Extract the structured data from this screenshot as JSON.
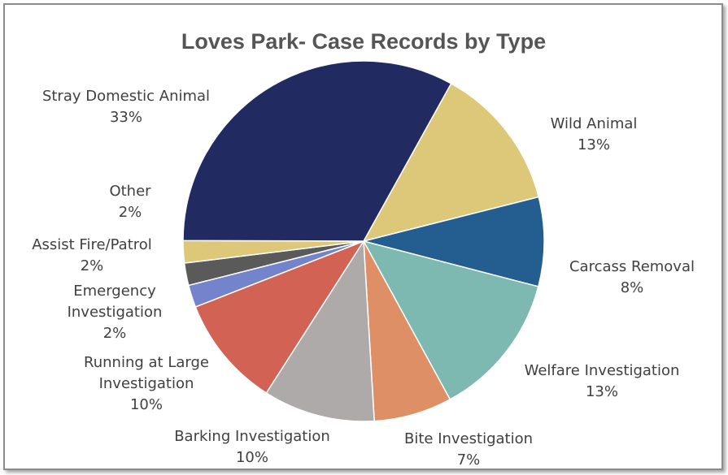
{
  "chart_data": {
    "type": "pie",
    "title": "Loves Park- Case Records by Type",
    "slices": [
      {
        "label": "Stray Domestic Animal",
        "percent": "33%",
        "value": 33,
        "color": "#222a62"
      },
      {
        "label": "Wild Animal",
        "percent": "13%",
        "value": 13,
        "color": "#dcc878"
      },
      {
        "label": "Carcass Removal",
        "percent": "8%",
        "value": 8,
        "color": "#245d8f"
      },
      {
        "label": "Welfare Investigation",
        "percent": "13%",
        "value": 13,
        "color": "#7db8b1"
      },
      {
        "label": "Bite Investigation",
        "percent": "7%",
        "value": 7,
        "color": "#df8f66"
      },
      {
        "label": "Barking Investigation",
        "percent": "10%",
        "value": 10,
        "color": "#aeaaaa"
      },
      {
        "label": "Running at Large Investigation",
        "percent": "10%",
        "value": 10,
        "color": "#d26253"
      },
      {
        "label": "Emergency Investigation",
        "percent": "2%",
        "value": 2,
        "color": "#7384cc"
      },
      {
        "label": "Assist Fire/Patrol",
        "percent": "2%",
        "value": 2,
        "color": "#5a5a5a"
      },
      {
        "label": "Other",
        "percent": "2%",
        "value": 2,
        "color": "#dcc878"
      }
    ],
    "legend": "none"
  }
}
